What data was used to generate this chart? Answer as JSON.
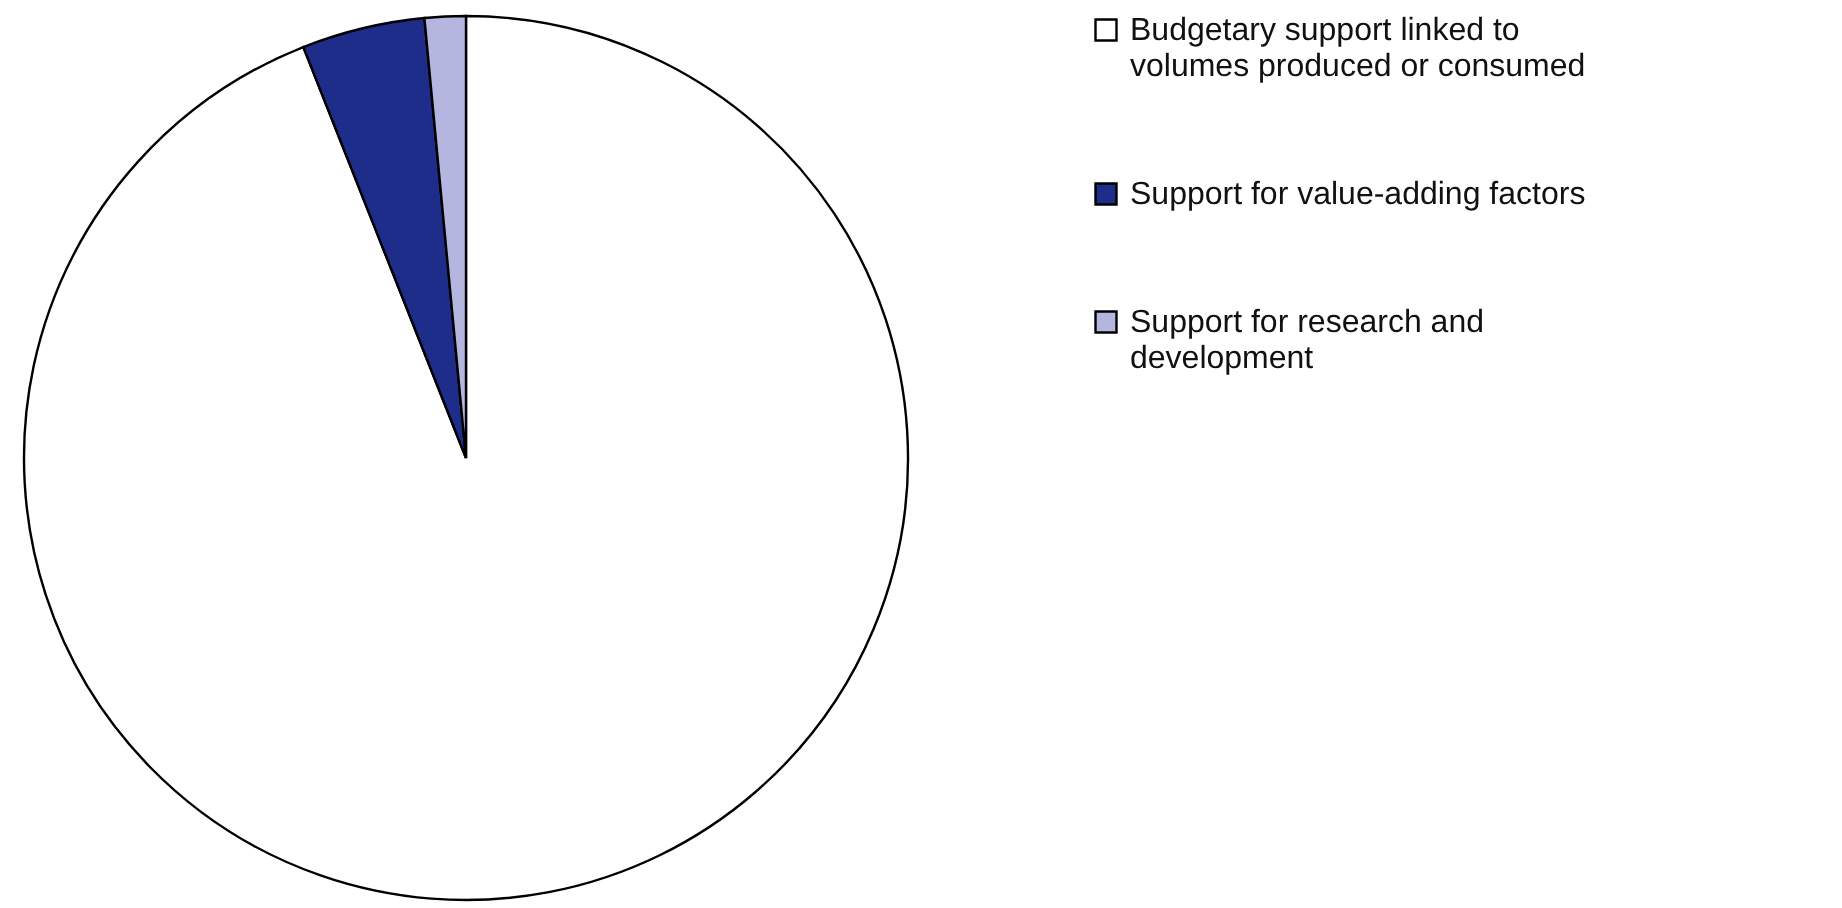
{
  "chart_data": {
    "type": "pie",
    "categories": [
      "Budgetary support linked to volumes produced or consumed",
      "Support for value-adding factors",
      "Support for research and development"
    ],
    "values": [
      94,
      4.5,
      1.5
    ],
    "colors": [
      "#ffffff",
      "#1f2d8a",
      "#b4b6e0"
    ],
    "legend": "right"
  }
}
